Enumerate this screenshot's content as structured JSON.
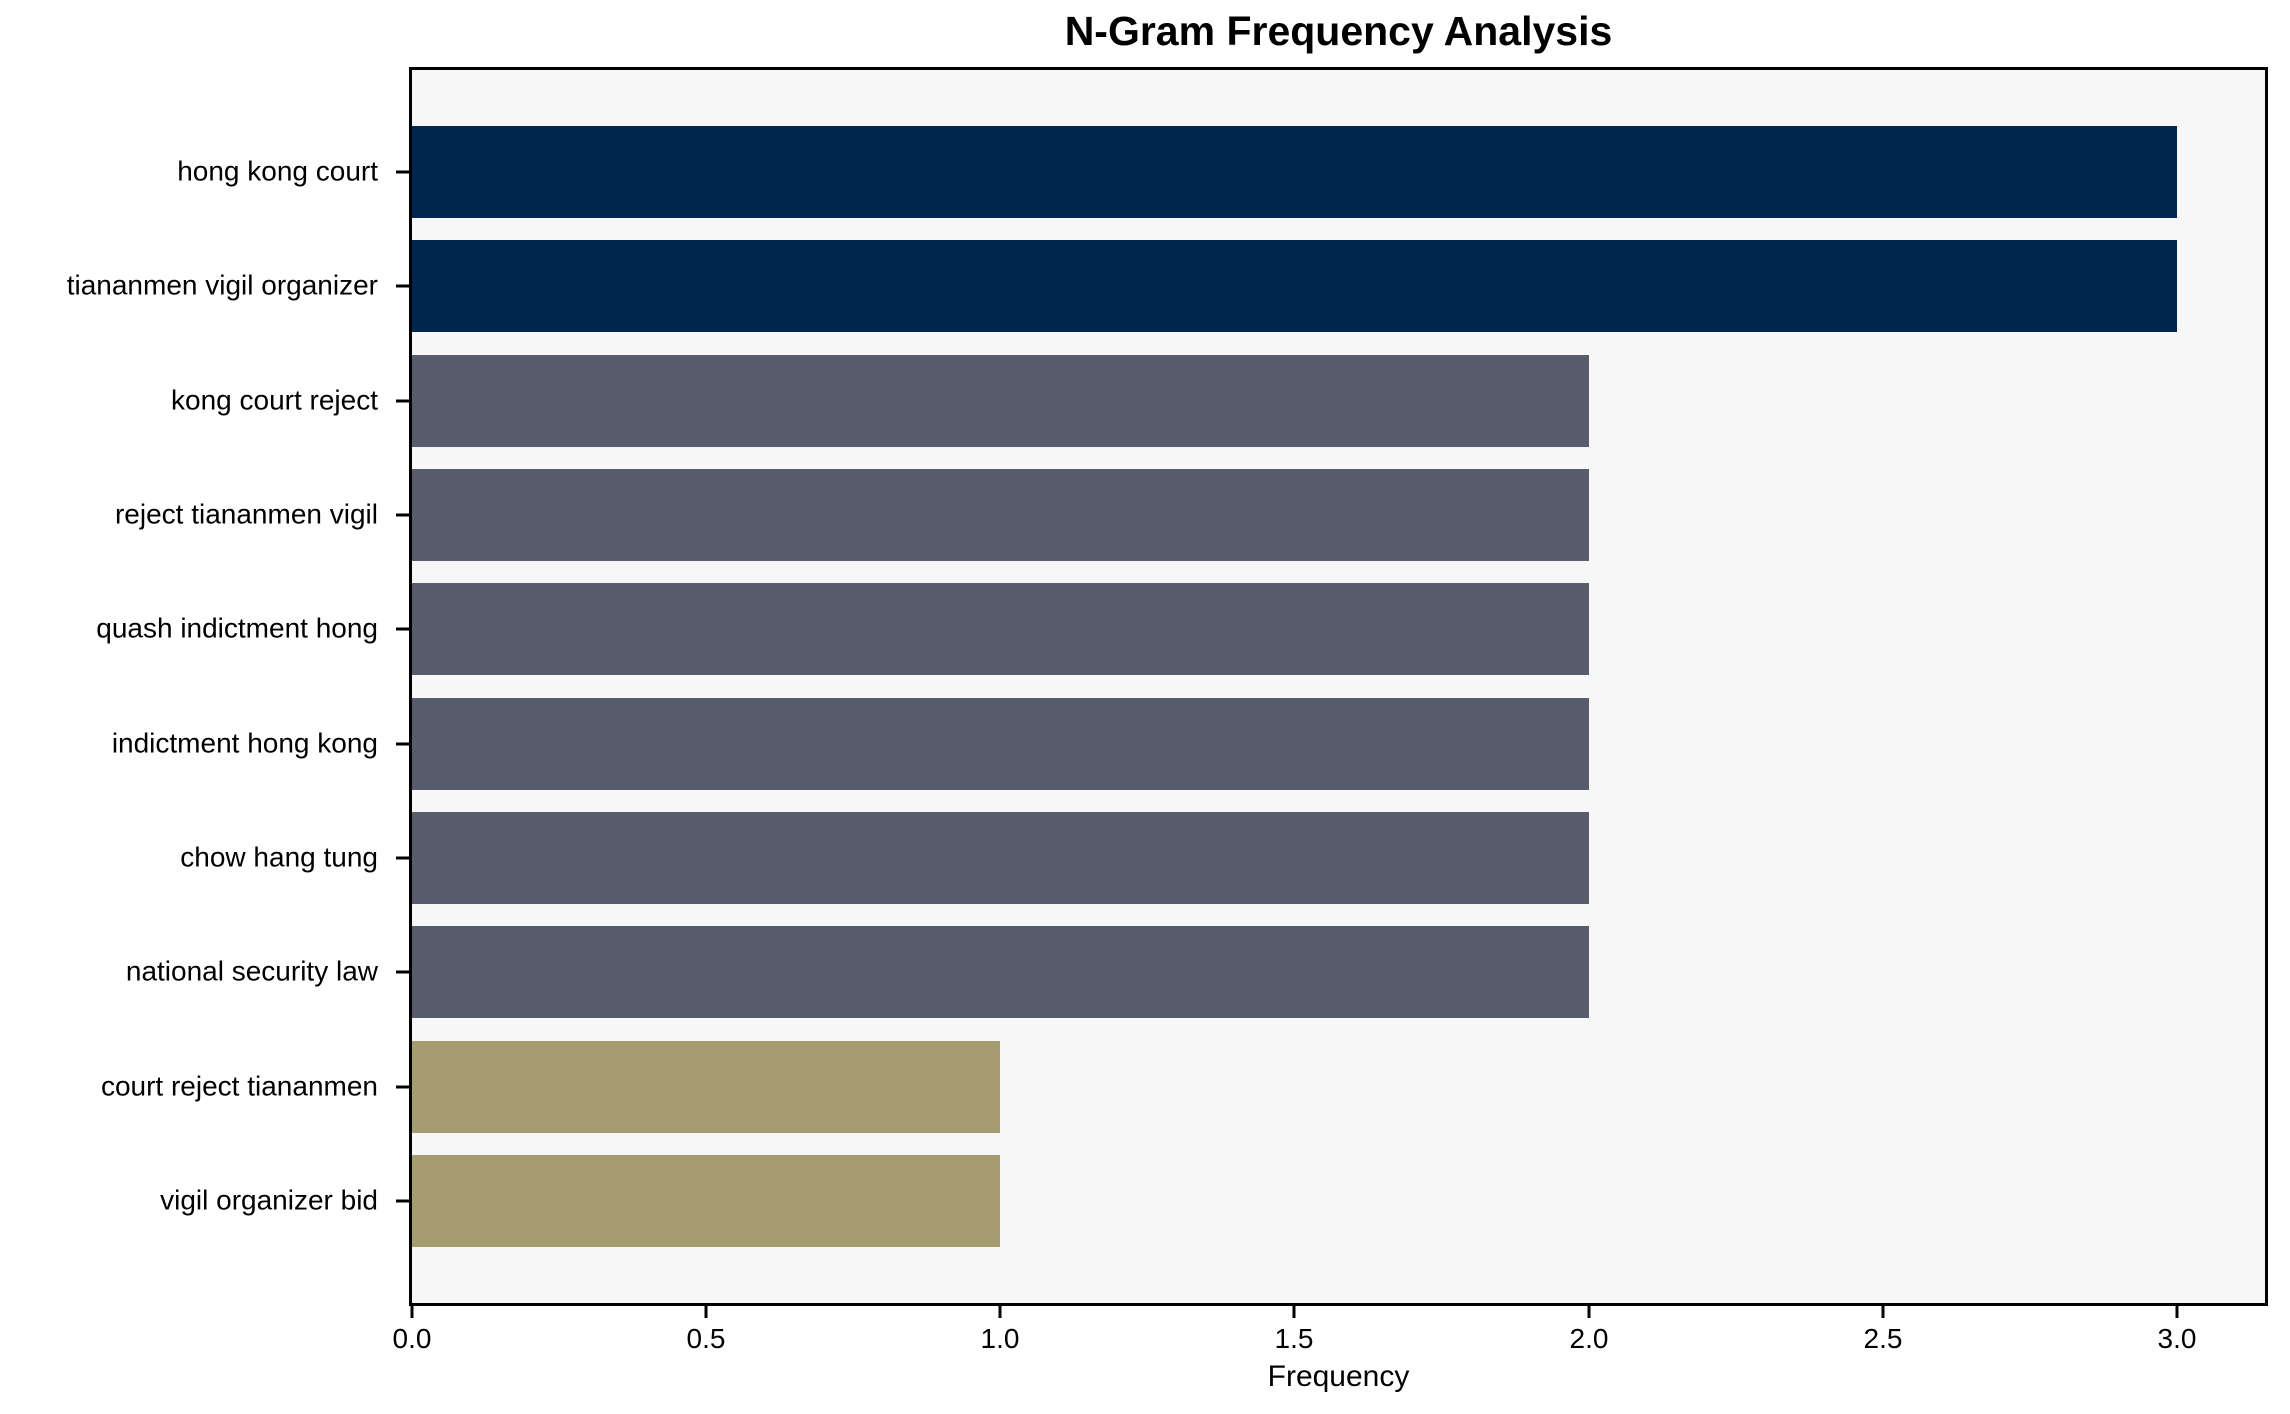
{
  "chart_data": {
    "type": "bar",
    "orientation": "horizontal",
    "title": "N-Gram Frequency Analysis",
    "xlabel": "Frequency",
    "ylabel": "",
    "categories": [
      "hong kong court",
      "tiananmen vigil organizer",
      "kong court reject",
      "reject tiananmen vigil",
      "quash indictment hong",
      "indictment hong kong",
      "chow hang tung",
      "national security law",
      "court reject tiananmen",
      "vigil organizer bid"
    ],
    "values": [
      3,
      3,
      2,
      2,
      2,
      2,
      2,
      2,
      1,
      1
    ],
    "bar_colors": [
      "#00254e",
      "#00254e",
      "#575d6d",
      "#575d6d",
      "#575d6d",
      "#575d6d",
      "#575d6d",
      "#575d6d",
      "#a69c72",
      "#a69c72"
    ],
    "xtick_labels": [
      "0.0",
      "0.5",
      "1.0",
      "1.5",
      "2.0",
      "2.5",
      "3.0"
    ],
    "xtick_values": [
      0,
      0.5,
      1,
      1.5,
      2,
      2.5,
      3
    ],
    "xlim": [
      0,
      3.15
    ],
    "grid": false,
    "legend": null,
    "colors": {
      "plot_background": "#f7f7f7",
      "figure_background": "#ffffff",
      "spine": "#000000",
      "text": "#000000",
      "bar_high": "#00254e",
      "bar_mid": "#575d6d",
      "bar_low": "#a69c72"
    }
  }
}
